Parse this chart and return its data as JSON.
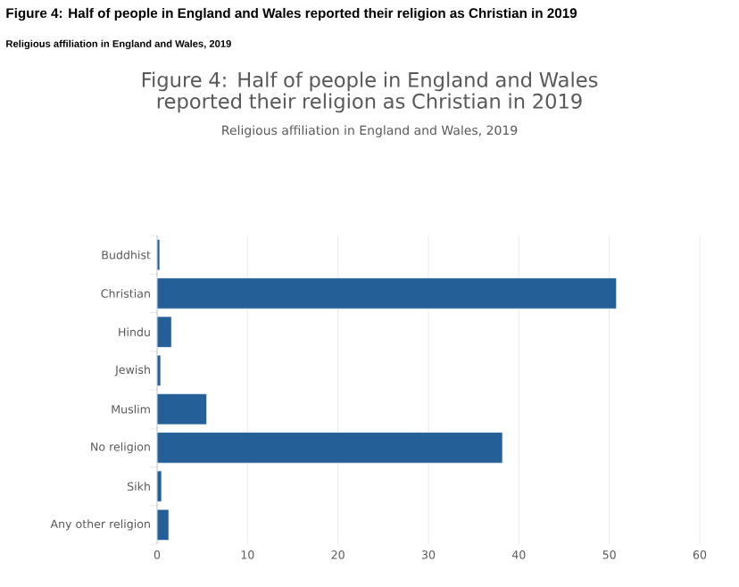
{
  "chart_data": {
    "type": "bar",
    "orientation": "horizontal",
    "title": "Figure 4: Half of people in England and Wales reported their religion as Christian in 2019",
    "subtitle": "Religious affiliation in England and Wales, 2019",
    "annotations": [
      "Figure 4: Half of people in England and Wales reported their religion as Christian in 2019",
      "Religious affiliation in England and Wales, 2019"
    ],
    "categories": [
      "Buddhist",
      "Christian",
      "Hindu",
      "Jewish",
      "Muslim",
      "No religion",
      "Sikh",
      "Any other religion"
    ],
    "values": [
      0.3,
      50.8,
      1.6,
      0.4,
      5.5,
      38.2,
      0.5,
      1.3
    ],
    "color": "#245f97",
    "xlim": [
      0,
      60
    ],
    "xticks": [
      0,
      10,
      20,
      30,
      40,
      50,
      60
    ],
    "grid": "x"
  }
}
